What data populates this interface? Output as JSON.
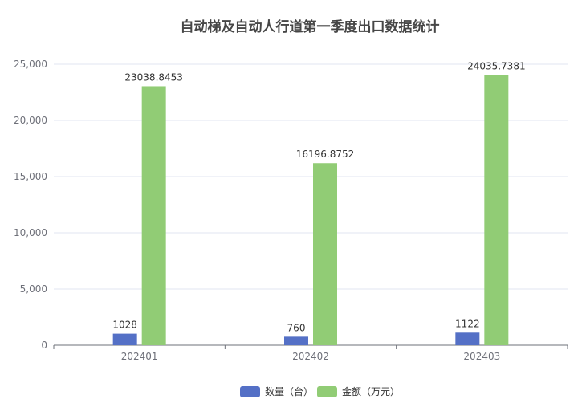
{
  "chart_data": {
    "type": "bar",
    "title": "自动梯及自动人行道第一季度出口数据统计",
    "categories": [
      "202401",
      "202402",
      "202403"
    ],
    "series": [
      {
        "name": "数量（台）",
        "values": [
          1028,
          760,
          1122
        ],
        "labels": [
          "1028",
          "760",
          "1122"
        ],
        "color": "#5470c6"
      },
      {
        "name": "金额（万元）",
        "values": [
          23038.8453,
          16196.8752,
          24035.7381
        ],
        "labels": [
          "23038.8453",
          "16196.8752",
          "24035.7381"
        ],
        "color": "#91cc75"
      }
    ],
    "ylim": [
      0,
      25000
    ],
    "yticks": [
      "0",
      "5,000",
      "10,000",
      "15,000",
      "20,000",
      "25,000"
    ],
    "ytick_values": [
      0,
      5000,
      10000,
      15000,
      20000,
      25000
    ],
    "grid": true,
    "legend_position": "bottom-center"
  }
}
